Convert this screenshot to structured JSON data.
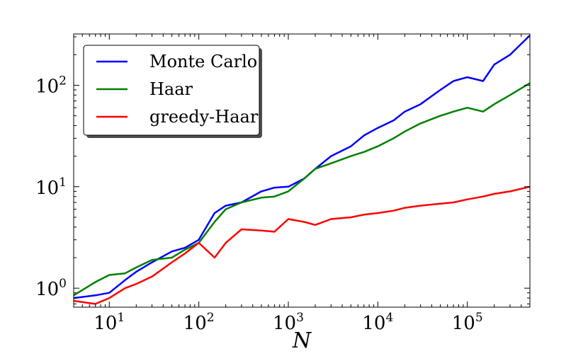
{
  "chart_data": {
    "type": "line",
    "xlabel": "N",
    "ylabel": "",
    "title": "",
    "xscale": "log",
    "yscale": "log",
    "xlim": [
      4,
      500000
    ],
    "ylim": [
      0.65,
      320
    ],
    "x_ticks": [
      {
        "value": 10,
        "base": "10",
        "exp": "1"
      },
      {
        "value": 100,
        "base": "10",
        "exp": "2"
      },
      {
        "value": 1000,
        "base": "10",
        "exp": "3"
      },
      {
        "value": 10000,
        "base": "10",
        "exp": "4"
      },
      {
        "value": 100000,
        "base": "10",
        "exp": "5"
      }
    ],
    "y_ticks": [
      {
        "value": 1,
        "base": "10",
        "exp": "0"
      },
      {
        "value": 10,
        "base": "10",
        "exp": "1"
      },
      {
        "value": 100,
        "base": "10",
        "exp": "2"
      }
    ],
    "grid": false,
    "legend_position": "top-left",
    "x": [
      4,
      7,
      10,
      15,
      20,
      30,
      50,
      70,
      100,
      150,
      200,
      300,
      500,
      700,
      1000,
      1500,
      2000,
      3000,
      5000,
      7000,
      10000,
      15000,
      20000,
      30000,
      50000,
      70000,
      100000,
      150000,
      200000,
      300000,
      500000
    ],
    "series": [
      {
        "name": "Monte Carlo",
        "color": "#0000ff",
        "values": [
          0.8,
          0.85,
          0.9,
          1.2,
          1.45,
          1.8,
          2.3,
          2.5,
          3.0,
          5.5,
          6.5,
          7.0,
          9.0,
          9.8,
          10.0,
          12.0,
          15.0,
          20.0,
          25.0,
          32.0,
          38.0,
          45.0,
          55.0,
          65.0,
          90.0,
          110.0,
          120.0,
          110.0,
          160.0,
          200.0,
          310.0
        ]
      },
      {
        "name": "Haar",
        "color": "#008000",
        "values": [
          0.85,
          1.15,
          1.35,
          1.4,
          1.6,
          1.9,
          2.0,
          2.4,
          2.8,
          4.5,
          6.0,
          7.0,
          7.8,
          8.0,
          9.0,
          12.0,
          15.0,
          17.0,
          20.0,
          22.0,
          25.0,
          30.0,
          35.0,
          42.0,
          50.0,
          55.0,
          60.0,
          55.0,
          65.0,
          80.0,
          105.0
        ]
      },
      {
        "name": "greedy-Haar",
        "color": "#ff0000",
        "values": [
          0.75,
          0.7,
          0.8,
          1.0,
          1.1,
          1.3,
          1.8,
          2.2,
          2.8,
          2.0,
          2.8,
          3.8,
          3.7,
          3.6,
          4.8,
          4.5,
          4.2,
          4.8,
          5.0,
          5.3,
          5.5,
          5.8,
          6.2,
          6.5,
          6.8,
          7.0,
          7.5,
          8.0,
          8.5,
          9.0,
          10.0
        ]
      }
    ]
  }
}
